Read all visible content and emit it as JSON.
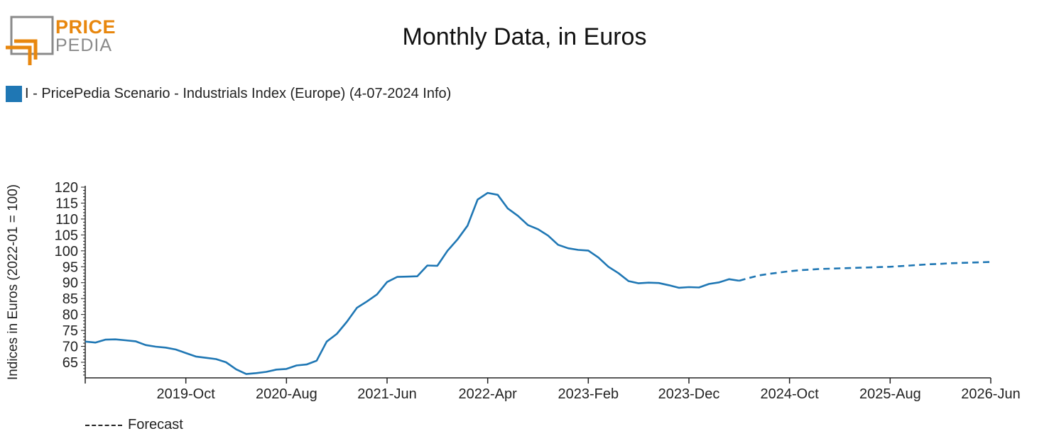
{
  "logo": {
    "line1": "PRICE",
    "line2": "PEDIA"
  },
  "header": {
    "title": "Monthly Data, in Euros"
  },
  "legend": {
    "label": "I - PricePedia Scenario - Industrials Index (Europe) (4-07-2024 Info)"
  },
  "footer": {
    "forecast_label": "Forecast"
  },
  "colors": {
    "series": "#1f77b4",
    "logo_orange": "#e8870e",
    "logo_gray": "#8a8a8a"
  },
  "chart_data": {
    "type": "line",
    "title": "Monthly Data, in Euros",
    "ylabel": "Indices in Euros (2022-01 = 100)",
    "xlabel": "",
    "ylim": [
      60,
      120
    ],
    "yticks": [
      65,
      70,
      75,
      80,
      85,
      90,
      95,
      100,
      105,
      110,
      115,
      120
    ],
    "xlim": [
      "2018-12",
      "2026-06"
    ],
    "xticks": [
      "2019-Oct",
      "2020-Aug",
      "2021-Jun",
      "2022-Apr",
      "2023-Feb",
      "2023-Dec",
      "2024-Oct",
      "2025-Aug",
      "2026-Jun"
    ],
    "legend_position": "top-left",
    "grid": false,
    "series": [
      {
        "name": "I - PricePedia Scenario - Industrials Index (Europe) (4-07-2024 Info)",
        "style": "solid",
        "x": [
          "2018-12",
          "2019-01",
          "2019-02",
          "2019-03",
          "2019-04",
          "2019-05",
          "2019-06",
          "2019-07",
          "2019-08",
          "2019-09",
          "2019-10",
          "2019-11",
          "2019-12",
          "2020-01",
          "2020-02",
          "2020-03",
          "2020-04",
          "2020-05",
          "2020-06",
          "2020-07",
          "2020-08",
          "2020-09",
          "2020-10",
          "2020-11",
          "2020-12",
          "2021-01",
          "2021-02",
          "2021-03",
          "2021-04",
          "2021-05",
          "2021-06",
          "2021-07",
          "2021-08",
          "2021-09",
          "2021-10",
          "2021-11",
          "2021-12",
          "2022-01",
          "2022-02",
          "2022-03",
          "2022-04",
          "2022-05",
          "2022-06",
          "2022-07",
          "2022-08",
          "2022-09",
          "2022-10",
          "2022-11",
          "2022-12",
          "2023-01",
          "2023-02",
          "2023-03",
          "2023-04",
          "2023-05",
          "2023-06",
          "2023-07",
          "2023-08",
          "2023-09",
          "2023-10",
          "2023-11",
          "2023-12",
          "2024-01",
          "2024-02",
          "2024-03",
          "2024-04",
          "2024-05"
        ],
        "values": [
          71.5,
          71.2,
          72.1,
          72.2,
          71.9,
          71.6,
          70.4,
          69.9,
          69.6,
          69.0,
          67.9,
          66.8,
          66.4,
          66.0,
          65.0,
          62.8,
          61.3,
          61.6,
          62.0,
          62.7,
          62.9,
          64.0,
          64.3,
          65.5,
          71.5,
          73.9,
          77.7,
          82.1,
          84.1,
          86.3,
          90.2,
          91.8,
          91.9,
          92.0,
          95.4,
          95.3,
          100.0,
          103.6,
          107.9,
          116.1,
          118.2,
          117.6,
          113.3,
          111.0,
          108.1,
          106.8,
          104.8,
          101.9,
          100.8,
          100.3,
          100.1,
          97.9,
          95.0,
          93.0,
          90.5,
          89.8,
          90.0,
          89.9,
          89.2,
          88.4,
          88.6,
          88.5,
          89.6,
          90.1,
          91.1,
          90.6
        ]
      },
      {
        "name": "Forecast",
        "style": "dashed",
        "x": [
          "2024-05",
          "2024-06",
          "2024-07",
          "2024-08",
          "2024-09",
          "2024-10",
          "2024-11",
          "2024-12",
          "2025-01",
          "2025-02",
          "2025-03",
          "2025-04",
          "2025-05",
          "2025-06",
          "2025-07",
          "2025-08",
          "2025-09",
          "2025-10",
          "2025-11",
          "2025-12",
          "2026-01",
          "2026-02",
          "2026-03",
          "2026-04",
          "2026-05",
          "2026-06"
        ],
        "values": [
          90.6,
          91.5,
          92.3,
          92.8,
          93.2,
          93.6,
          93.9,
          94.1,
          94.3,
          94.4,
          94.5,
          94.6,
          94.7,
          94.8,
          94.9,
          95.0,
          95.2,
          95.4,
          95.6,
          95.8,
          95.9,
          96.1,
          96.2,
          96.3,
          96.4,
          96.5
        ]
      }
    ]
  }
}
